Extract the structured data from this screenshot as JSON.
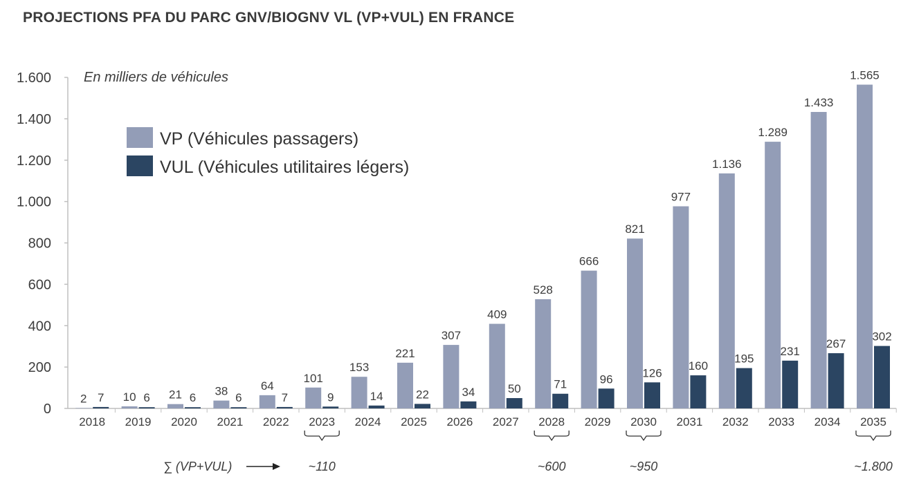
{
  "title": "PROJECTIONS PFA DU PARC GNV/BIOGNV VL (VP+VUL) EN FRANCE",
  "unit_note": "En milliers de véhicules",
  "chart_data": {
    "type": "bar",
    "title": "PROJECTIONS PFA DU PARC GNV/BIOGNV VL (VP+VUL) EN FRANCE",
    "categories": [
      "2018",
      "2019",
      "2020",
      "2021",
      "2022",
      "2023",
      "2024",
      "2025",
      "2026",
      "2027",
      "2028",
      "2029",
      "2030",
      "2031",
      "2032",
      "2033",
      "2034",
      "2035"
    ],
    "series": [
      {
        "name": "VP (Véhicules passagers)",
        "color": "#939db7",
        "values": [
          2,
          10,
          21,
          38,
          64,
          101,
          153,
          221,
          307,
          409,
          528,
          666,
          821,
          977,
          1136,
          1289,
          1433,
          1565
        ],
        "labels": [
          "2",
          "10",
          "21",
          "38",
          "64",
          "101",
          "153",
          "221",
          "307",
          "409",
          "528",
          "666",
          "821",
          "977",
          "1.136",
          "1.289",
          "1.433",
          "1.565"
        ]
      },
      {
        "name": "VUL (Véhicules utilitaires légers)",
        "color": "#2b4562",
        "values": [
          7,
          6,
          6,
          6,
          7,
          9,
          14,
          22,
          34,
          50,
          71,
          96,
          126,
          160,
          195,
          231,
          267,
          302
        ],
        "labels": [
          "7",
          "6",
          "6",
          "6",
          "7",
          "9",
          "14",
          "22",
          "34",
          "50",
          "71",
          "96",
          "126",
          "160",
          "195",
          "231",
          "267",
          "302"
        ]
      }
    ],
    "ylim": [
      0,
      1600
    ],
    "yticks": [
      0,
      200,
      400,
      600,
      800,
      1000,
      1200,
      1400,
      1600
    ],
    "ytick_labels": [
      "0",
      "200",
      "400",
      "600",
      "800",
      "1.000",
      "1.200",
      "1.400",
      "1.600"
    ],
    "xlabel": "",
    "ylabel": "",
    "grid": false,
    "legend_position": "top-left"
  },
  "sum_row": {
    "label": "∑ (VP+VUL)",
    "items": [
      {
        "category": "2023",
        "text": "~110"
      },
      {
        "category": "2028",
        "text": "~600"
      },
      {
        "category": "2030",
        "text": "~950"
      },
      {
        "category": "2035",
        "text": "~1.800"
      }
    ]
  }
}
